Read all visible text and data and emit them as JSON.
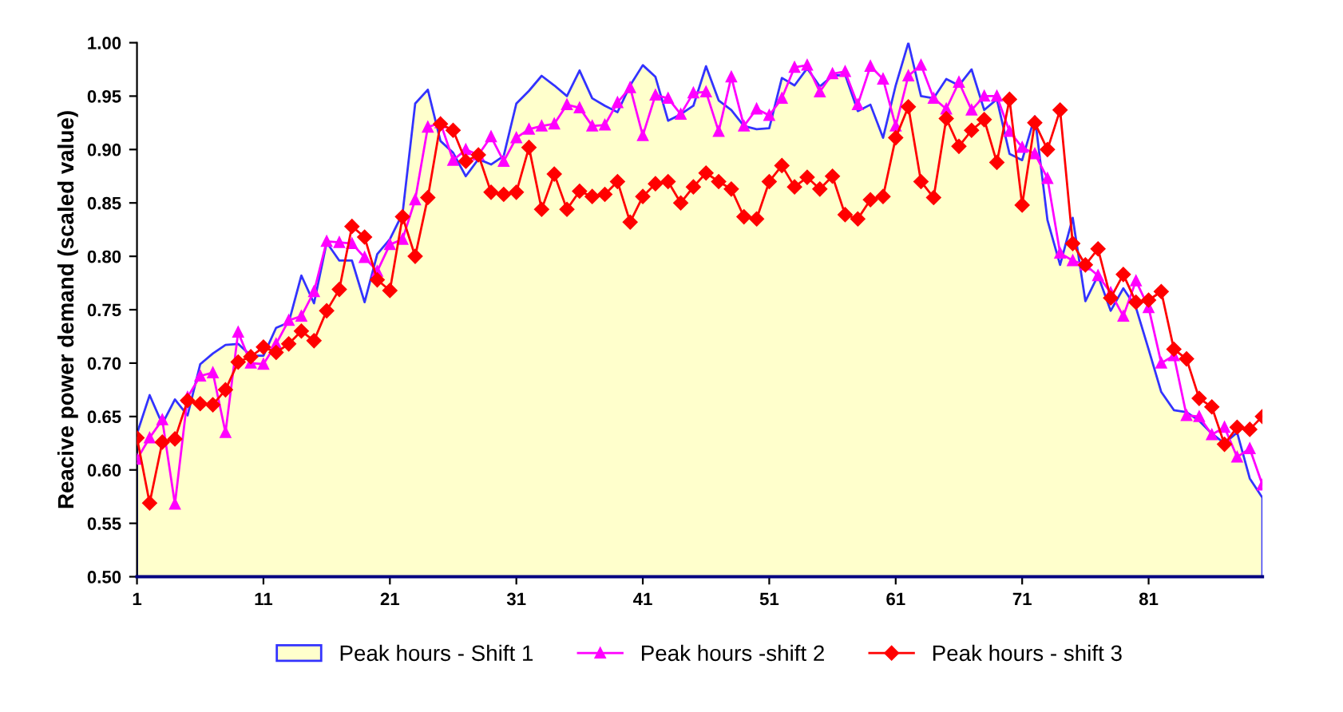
{
  "chart_data": {
    "type": "line",
    "ylabel": "Reacive power demand (scaled value)",
    "x": [
      1,
      2,
      3,
      4,
      5,
      6,
      7,
      8,
      9,
      10,
      11,
      12,
      13,
      14,
      15,
      16,
      17,
      18,
      19,
      20,
      21,
      22,
      23,
      24,
      25,
      26,
      27,
      28,
      29,
      30,
      31,
      32,
      33,
      34,
      35,
      36,
      37,
      38,
      39,
      40,
      41,
      42,
      43,
      44,
      45,
      46,
      47,
      48,
      49,
      50,
      51,
      52,
      53,
      54,
      55,
      56,
      57,
      58,
      59,
      60,
      61,
      62,
      63,
      64,
      65,
      66,
      67,
      68,
      69,
      70,
      71,
      72,
      73,
      74,
      75,
      76,
      77,
      78,
      79,
      80,
      81,
      82,
      83,
      84,
      85,
      86,
      87,
      88,
      89,
      90
    ],
    "xlim": [
      1,
      90
    ],
    "xticks": [
      1,
      11,
      21,
      31,
      41,
      51,
      61,
      71,
      81
    ],
    "ylim": [
      0.5,
      1.0
    ],
    "yticks": [
      {
        "value": 0.5,
        "label": "0.50"
      },
      {
        "value": 0.55,
        "label": "0.55"
      },
      {
        "value": 0.6,
        "label": "0.60"
      },
      {
        "value": 0.65,
        "label": "0.65"
      },
      {
        "value": 0.7,
        "label": "0.70"
      },
      {
        "value": 0.75,
        "label": "0.75"
      },
      {
        "value": 0.8,
        "label": "0.80"
      },
      {
        "value": 0.85,
        "label": "0.85"
      },
      {
        "value": 0.9,
        "label": "0.90"
      },
      {
        "value": 0.95,
        "label": "0.95"
      },
      {
        "value": 1.0,
        "label": "1.00"
      }
    ],
    "grid": false,
    "legend": "bottom",
    "series": [
      {
        "name": "Peak hours - Shift 1",
        "type": "area",
        "color": "#ffffcc",
        "marker": "none",
        "values": [
          0.634,
          0.67,
          0.643,
          0.666,
          0.651,
          0.699,
          0.709,
          0.717,
          0.718,
          0.707,
          0.707,
          0.733,
          0.738,
          0.782,
          0.756,
          0.813,
          0.796,
          0.796,
          0.757,
          0.802,
          0.816,
          0.84,
          0.943,
          0.956,
          0.908,
          0.897,
          0.875,
          0.891,
          0.886,
          0.894,
          0.943,
          0.955,
          0.969,
          0.96,
          0.95,
          0.974,
          0.948,
          0.941,
          0.935,
          0.96,
          0.979,
          0.968,
          0.927,
          0.933,
          0.941,
          0.978,
          0.946,
          0.937,
          0.922,
          0.919,
          0.92,
          0.967,
          0.96,
          0.976,
          0.959,
          0.969,
          0.97,
          0.936,
          0.942,
          0.911,
          0.96,
          1.0,
          0.95,
          0.948,
          0.966,
          0.96,
          0.975,
          0.937,
          0.947,
          0.896,
          0.89,
          0.931,
          0.834,
          0.792,
          0.836,
          0.758,
          0.782,
          0.749,
          0.77,
          0.752,
          0.713,
          0.673,
          0.656,
          0.654,
          0.646,
          0.634,
          0.625,
          0.635,
          0.592,
          0.574
        ]
      },
      {
        "name": "Peak hours -shift 2",
        "color": "#ff00ff",
        "marker": "triangle",
        "values": [
          0.61,
          0.63,
          0.647,
          0.568,
          0.668,
          0.688,
          0.691,
          0.635,
          0.729,
          0.7,
          0.699,
          0.718,
          0.74,
          0.744,
          0.767,
          0.814,
          0.813,
          0.812,
          0.799,
          0.786,
          0.811,
          0.816,
          0.853,
          0.921,
          0.925,
          0.89,
          0.9,
          0.895,
          0.912,
          0.889,
          0.911,
          0.919,
          0.922,
          0.924,
          0.942,
          0.939,
          0.922,
          0.923,
          0.944,
          0.958,
          0.913,
          0.951,
          0.948,
          0.933,
          0.953,
          0.954,
          0.917,
          0.968,
          0.922,
          0.938,
          0.932,
          0.948,
          0.977,
          0.979,
          0.954,
          0.971,
          0.973,
          0.942,
          0.978,
          0.966,
          0.922,
          0.969,
          0.979,
          0.948,
          0.938,
          0.963,
          0.937,
          0.95,
          0.95,
          0.917,
          0.902,
          0.896,
          0.873,
          0.803,
          0.796,
          0.792,
          0.782,
          0.766,
          0.744,
          0.777,
          0.752,
          0.7,
          0.707,
          0.651,
          0.65,
          0.633,
          0.64,
          0.612,
          0.62,
          0.586
        ]
      },
      {
        "name": "Peak hours - shift 3",
        "color": "#ff0000",
        "marker": "diamond",
        "values": [
          0.63,
          0.569,
          0.626,
          0.629,
          0.665,
          0.662,
          0.661,
          0.675,
          0.701,
          0.706,
          0.715,
          0.71,
          0.718,
          0.73,
          0.721,
          0.749,
          0.769,
          0.828,
          0.818,
          0.778,
          0.768,
          0.837,
          0.8,
          0.855,
          0.924,
          0.918,
          0.889,
          0.895,
          0.86,
          0.858,
          0.86,
          0.902,
          0.844,
          0.877,
          0.844,
          0.861,
          0.856,
          0.858,
          0.87,
          0.832,
          0.856,
          0.868,
          0.87,
          0.85,
          0.865,
          0.878,
          0.87,
          0.863,
          0.837,
          0.835,
          0.87,
          0.885,
          0.865,
          0.874,
          0.863,
          0.875,
          0.839,
          0.835,
          0.853,
          0.856,
          0.911,
          0.94,
          0.87,
          0.855,
          0.929,
          0.903,
          0.918,
          0.928,
          0.888,
          0.947,
          0.848,
          0.925,
          0.9,
          0.937,
          0.812,
          0.792,
          0.807,
          0.761,
          0.783,
          0.757,
          0.759,
          0.767,
          0.713,
          0.704,
          0.667,
          0.659,
          0.624,
          0.64,
          0.638,
          0.65
        ]
      }
    ]
  }
}
